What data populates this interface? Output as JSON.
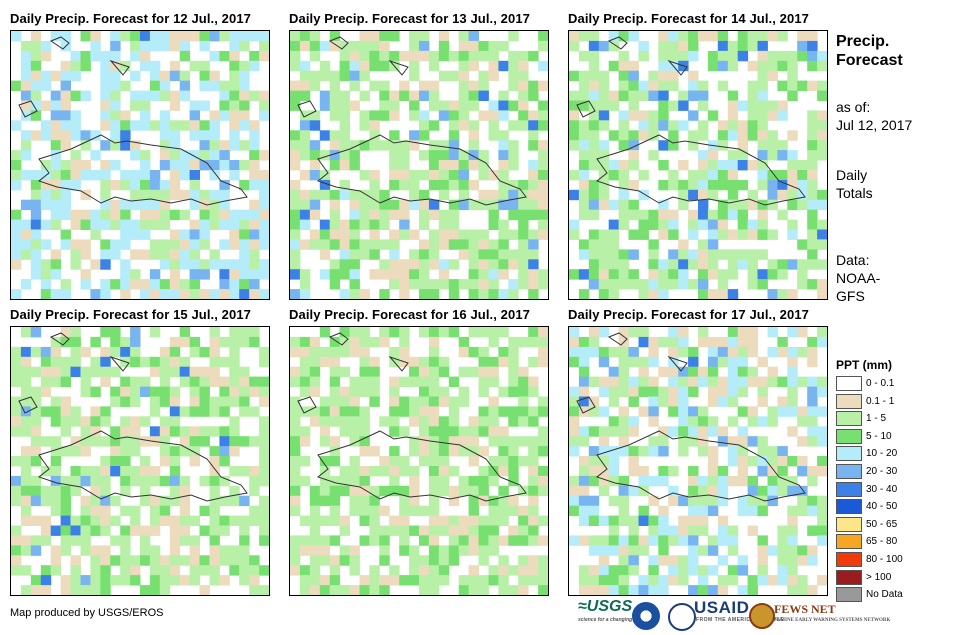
{
  "panels": [
    {
      "title": "Daily Precip. Forecast for 12 Jul., 2017",
      "seed": 12
    },
    {
      "title": "Daily Precip. Forecast for 13 Jul., 2017",
      "seed": 13
    },
    {
      "title": "Daily Precip. Forecast for 14 Jul., 2017",
      "seed": 14
    },
    {
      "title": "Daily Precip. Forecast for 15 Jul., 2017",
      "seed": 15
    },
    {
      "title": "Daily Precip. Forecast for 16 Jul., 2017",
      "seed": 16
    },
    {
      "title": "Daily Precip. Forecast for 17 Jul., 2017",
      "seed": 17
    }
  ],
  "side": {
    "title_line1": "Precip.",
    "title_line2": "Forecast",
    "asof_label": "as of:",
    "asof_date": "Jul 12, 2017",
    "totals_line1": "Daily",
    "totals_line2": "Totals",
    "data_line1": "Data:",
    "data_line2": "NOAA-",
    "data_line3": "GFS"
  },
  "legend": {
    "title": "PPT (mm)",
    "items": [
      {
        "label": "0 - 0.1",
        "color": "#ffffff"
      },
      {
        "label": "0.1 - 1",
        "color": "#eddbbd"
      },
      {
        "label": "1 - 5",
        "color": "#b8f0a8"
      },
      {
        "label": "5 - 10",
        "color": "#78e070"
      },
      {
        "label": "10 - 20",
        "color": "#b4ecfa"
      },
      {
        "label": "20 - 30",
        "color": "#78b4f0"
      },
      {
        "label": "30 - 40",
        "color": "#3c82e6"
      },
      {
        "label": "40 - 50",
        "color": "#1a5ad8"
      },
      {
        "label": "50 - 65",
        "color": "#fde68a"
      },
      {
        "label": "65 - 80",
        "color": "#f5a623"
      },
      {
        "label": "80 - 100",
        "color": "#f03c0a"
      },
      {
        "label": "> 100",
        "color": "#9b1c1c"
      },
      {
        "label": "No Data",
        "color": "#999999"
      }
    ]
  },
  "footer": {
    "credit": "Map produced by USGS/EROS"
  },
  "logos": {
    "usgs": "≈USGS",
    "usgs_tagline": "science for a changing world",
    "usaid": "USAID",
    "usaid_tagline": "FROM THE AMERICAN PEOPLE",
    "fews": "FEWS NET",
    "fews_tagline": "FAMINE EARLY WARNING SYSTEMS NETWORK"
  }
}
